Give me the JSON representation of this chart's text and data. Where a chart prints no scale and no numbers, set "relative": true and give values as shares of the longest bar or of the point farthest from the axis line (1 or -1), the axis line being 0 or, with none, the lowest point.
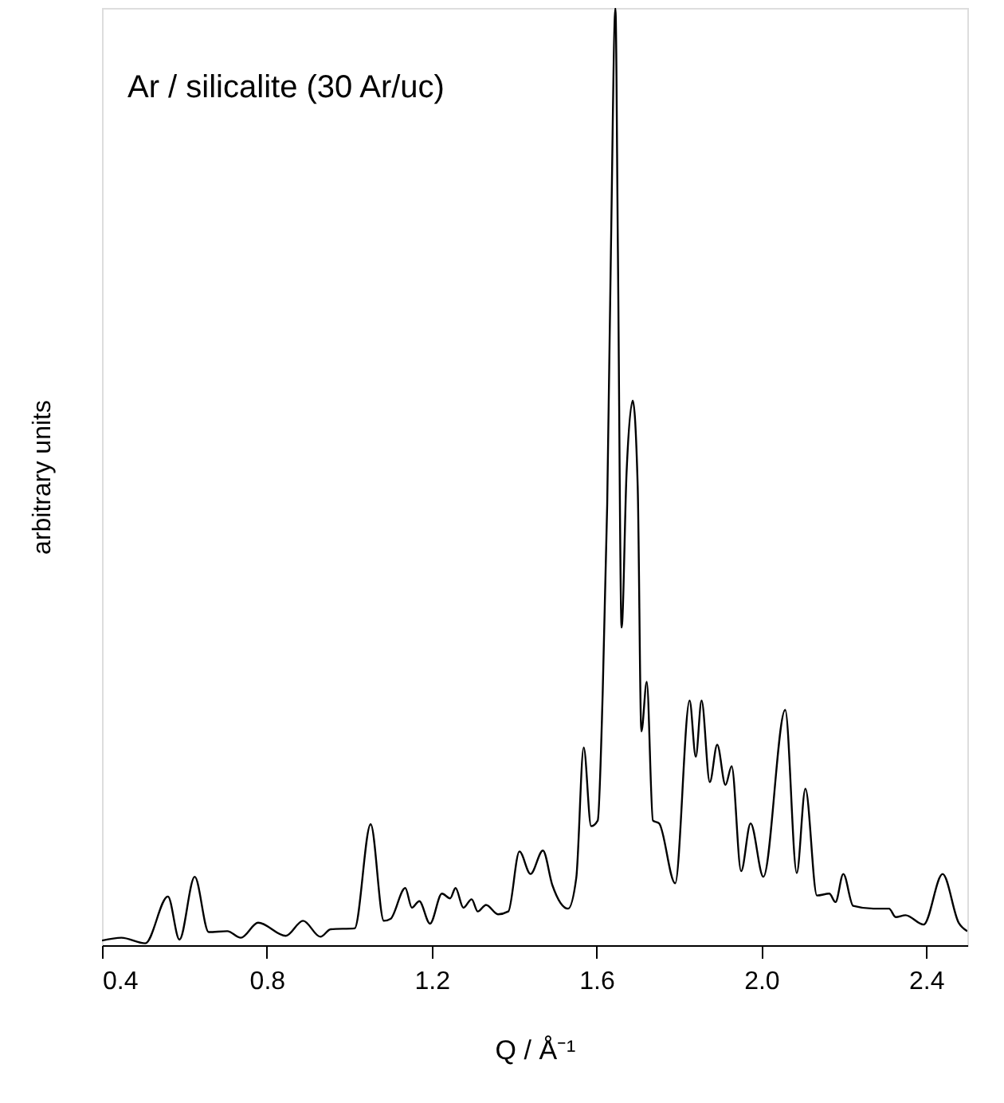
{
  "chart_data": {
    "type": "line",
    "relative": true,
    "xlabel": "Q / Å⁻¹",
    "ylabel": "arbitrary units",
    "annotations": [
      "Ar / silicalite (30 Ar/uc)"
    ],
    "xlim": [
      0.4,
      2.5
    ],
    "xticks": [
      0.4,
      0.8,
      1.2,
      1.6,
      {
        "value": 2,
        "label": "2.0"
      },
      2.4
    ],
    "grid": false,
    "marker": "none",
    "line_style": "solid",
    "series": [
      {
        "color": "#000000",
        "x": [
          0.4,
          0.447,
          0.505,
          0.56,
          0.588,
          0.625,
          0.659,
          0.704,
          0.737,
          0.779,
          0.846,
          0.888,
          0.93,
          0.955,
          1.013,
          1.052,
          1.084,
          1.1,
          1.136,
          1.152,
          1.17,
          1.196,
          1.225,
          1.245,
          1.258,
          1.277,
          1.297,
          1.312,
          1.332,
          1.361,
          1.386,
          1.413,
          1.44,
          1.47,
          1.493,
          1.531,
          1.551,
          1.569,
          1.587,
          1.603,
          1.615,
          1.626,
          1.635,
          1.646,
          1.652,
          1.661,
          1.673,
          1.688,
          1.7,
          1.709,
          1.722,
          1.737,
          1.752,
          1.791,
          1.826,
          1.841,
          1.855,
          1.875,
          1.893,
          1.913,
          1.928,
          1.951,
          1.974,
          2.005,
          2.058,
          2.086,
          2.107,
          2.135,
          2.165,
          2.18,
          2.199,
          2.223,
          2.272,
          2.31,
          2.326,
          2.35,
          2.394,
          2.44,
          2.479,
          2.5
        ],
        "values": [
          0.005,
          0.008,
          0.002,
          0.052,
          0.006,
          0.073,
          0.014,
          0.015,
          0.008,
          0.024,
          0.01,
          0.026,
          0.009,
          0.017,
          0.018,
          0.129,
          0.026,
          0.028,
          0.061,
          0.04,
          0.047,
          0.023,
          0.055,
          0.05,
          0.061,
          0.04,
          0.049,
          0.036,
          0.043,
          0.033,
          0.036,
          0.1,
          0.076,
          0.101,
          0.064,
          0.039,
          0.072,
          0.211,
          0.127,
          0.133,
          0.268,
          0.47,
          0.74,
          1.0,
          0.74,
          0.339,
          0.504,
          0.581,
          0.49,
          0.228,
          0.281,
          0.133,
          0.13,
          0.066,
          0.261,
          0.201,
          0.261,
          0.174,
          0.214,
          0.171,
          0.191,
          0.079,
          0.13,
          0.073,
          0.251,
          0.077,
          0.167,
          0.053,
          0.055,
          0.046,
          0.076,
          0.042,
          0.039,
          0.039,
          0.03,
          0.032,
          0.022,
          0.076,
          0.024,
          0.015
        ]
      }
    ]
  }
}
